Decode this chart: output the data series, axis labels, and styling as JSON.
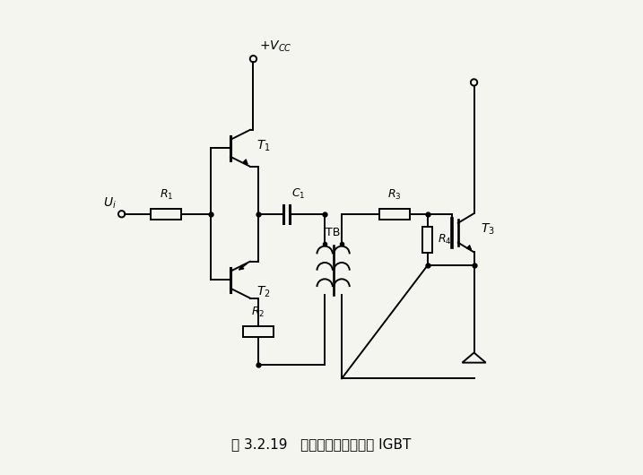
{
  "title": "图 3.2.19   利用脉冲变压器驱动 IGBT",
  "background_color": "#f5f5f0",
  "line_color": "#000000",
  "figsize": [
    7.17,
    5.3
  ],
  "dpi": 100
}
